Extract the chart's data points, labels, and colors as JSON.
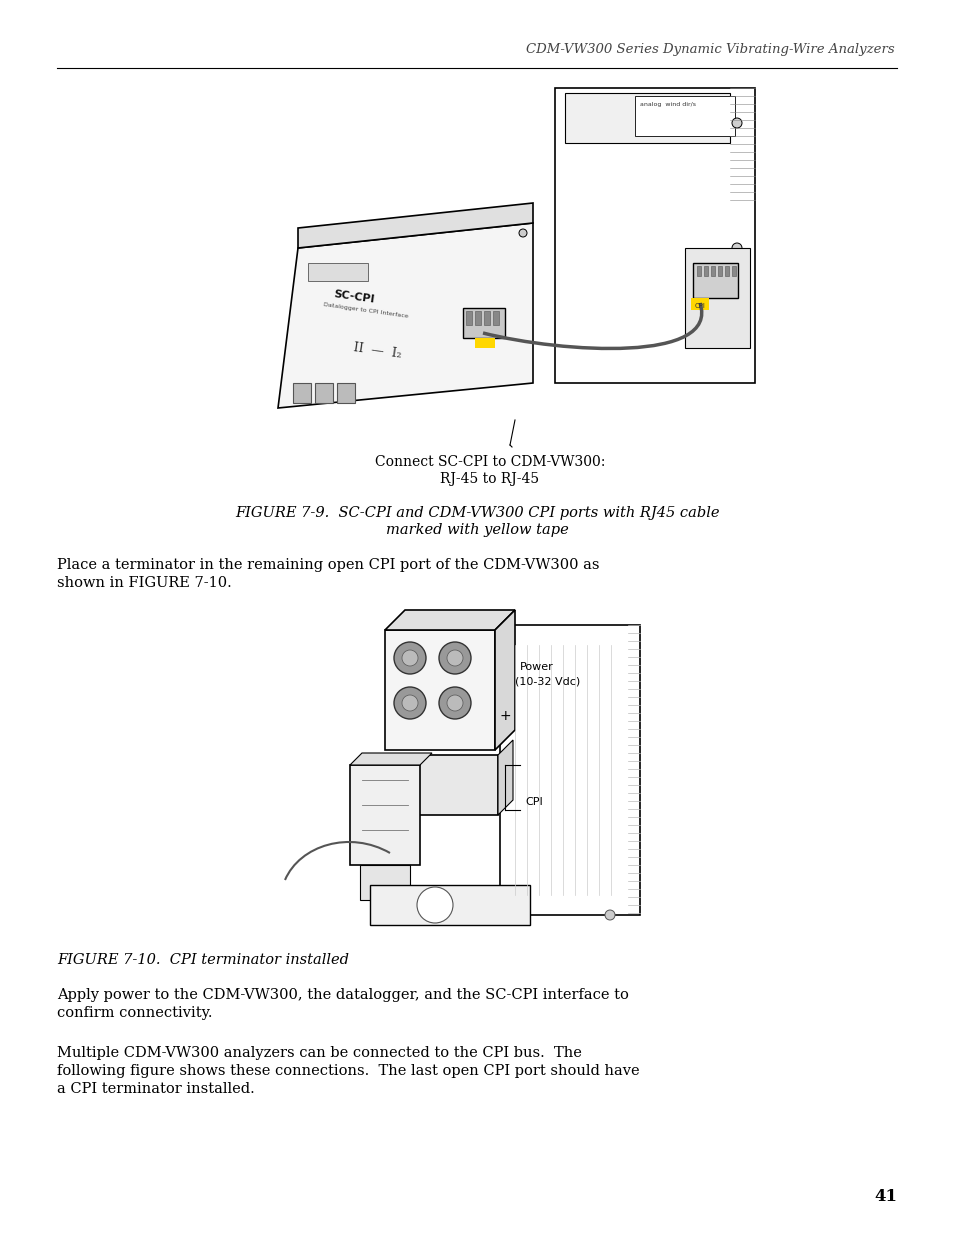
{
  "header_text": "CDM-VW300 Series Dynamic Vibrating-Wire Analyzers",
  "page_number": "41",
  "figure1_caption_line1": "FIGURE 7-9.  SC-CPI and CDM-VW300 CPI ports with RJ45 cable",
  "figure1_caption_line2": "marked with yellow tape",
  "figure1_annotation_line1": "Connect SC-CPI to CDM-VW300:",
  "figure1_annotation_line2": "RJ-45 to RJ-45",
  "figure2_caption": "FIGURE 7-10.  CPI terminator installed",
  "body_text_1_line1": "Place a terminator in the remaining open CPI port of the CDM-VW300 as",
  "body_text_1_line2": "shown in FIGURE 7-10.",
  "body_text_2_line1": "Apply power to the CDM-VW300, the datalogger, and the SC-CPI interface to",
  "body_text_2_line2": "confirm connectivity.",
  "body_text_3_line1": "Multiple CDM-VW300 analyzers can be connected to the CPI bus.  The",
  "body_text_3_line2": "following figure shows these connections.  The last open CPI port should have",
  "body_text_3_line3": "a CPI terminator installed.",
  "bg_color": "#ffffff",
  "text_color": "#000000",
  "header_color": "#444444",
  "line_color": "#000000",
  "caption_fontsize": 10.5,
  "body_fontsize": 10.5,
  "header_fontsize": 9.5,
  "page_num_fontsize": 12
}
